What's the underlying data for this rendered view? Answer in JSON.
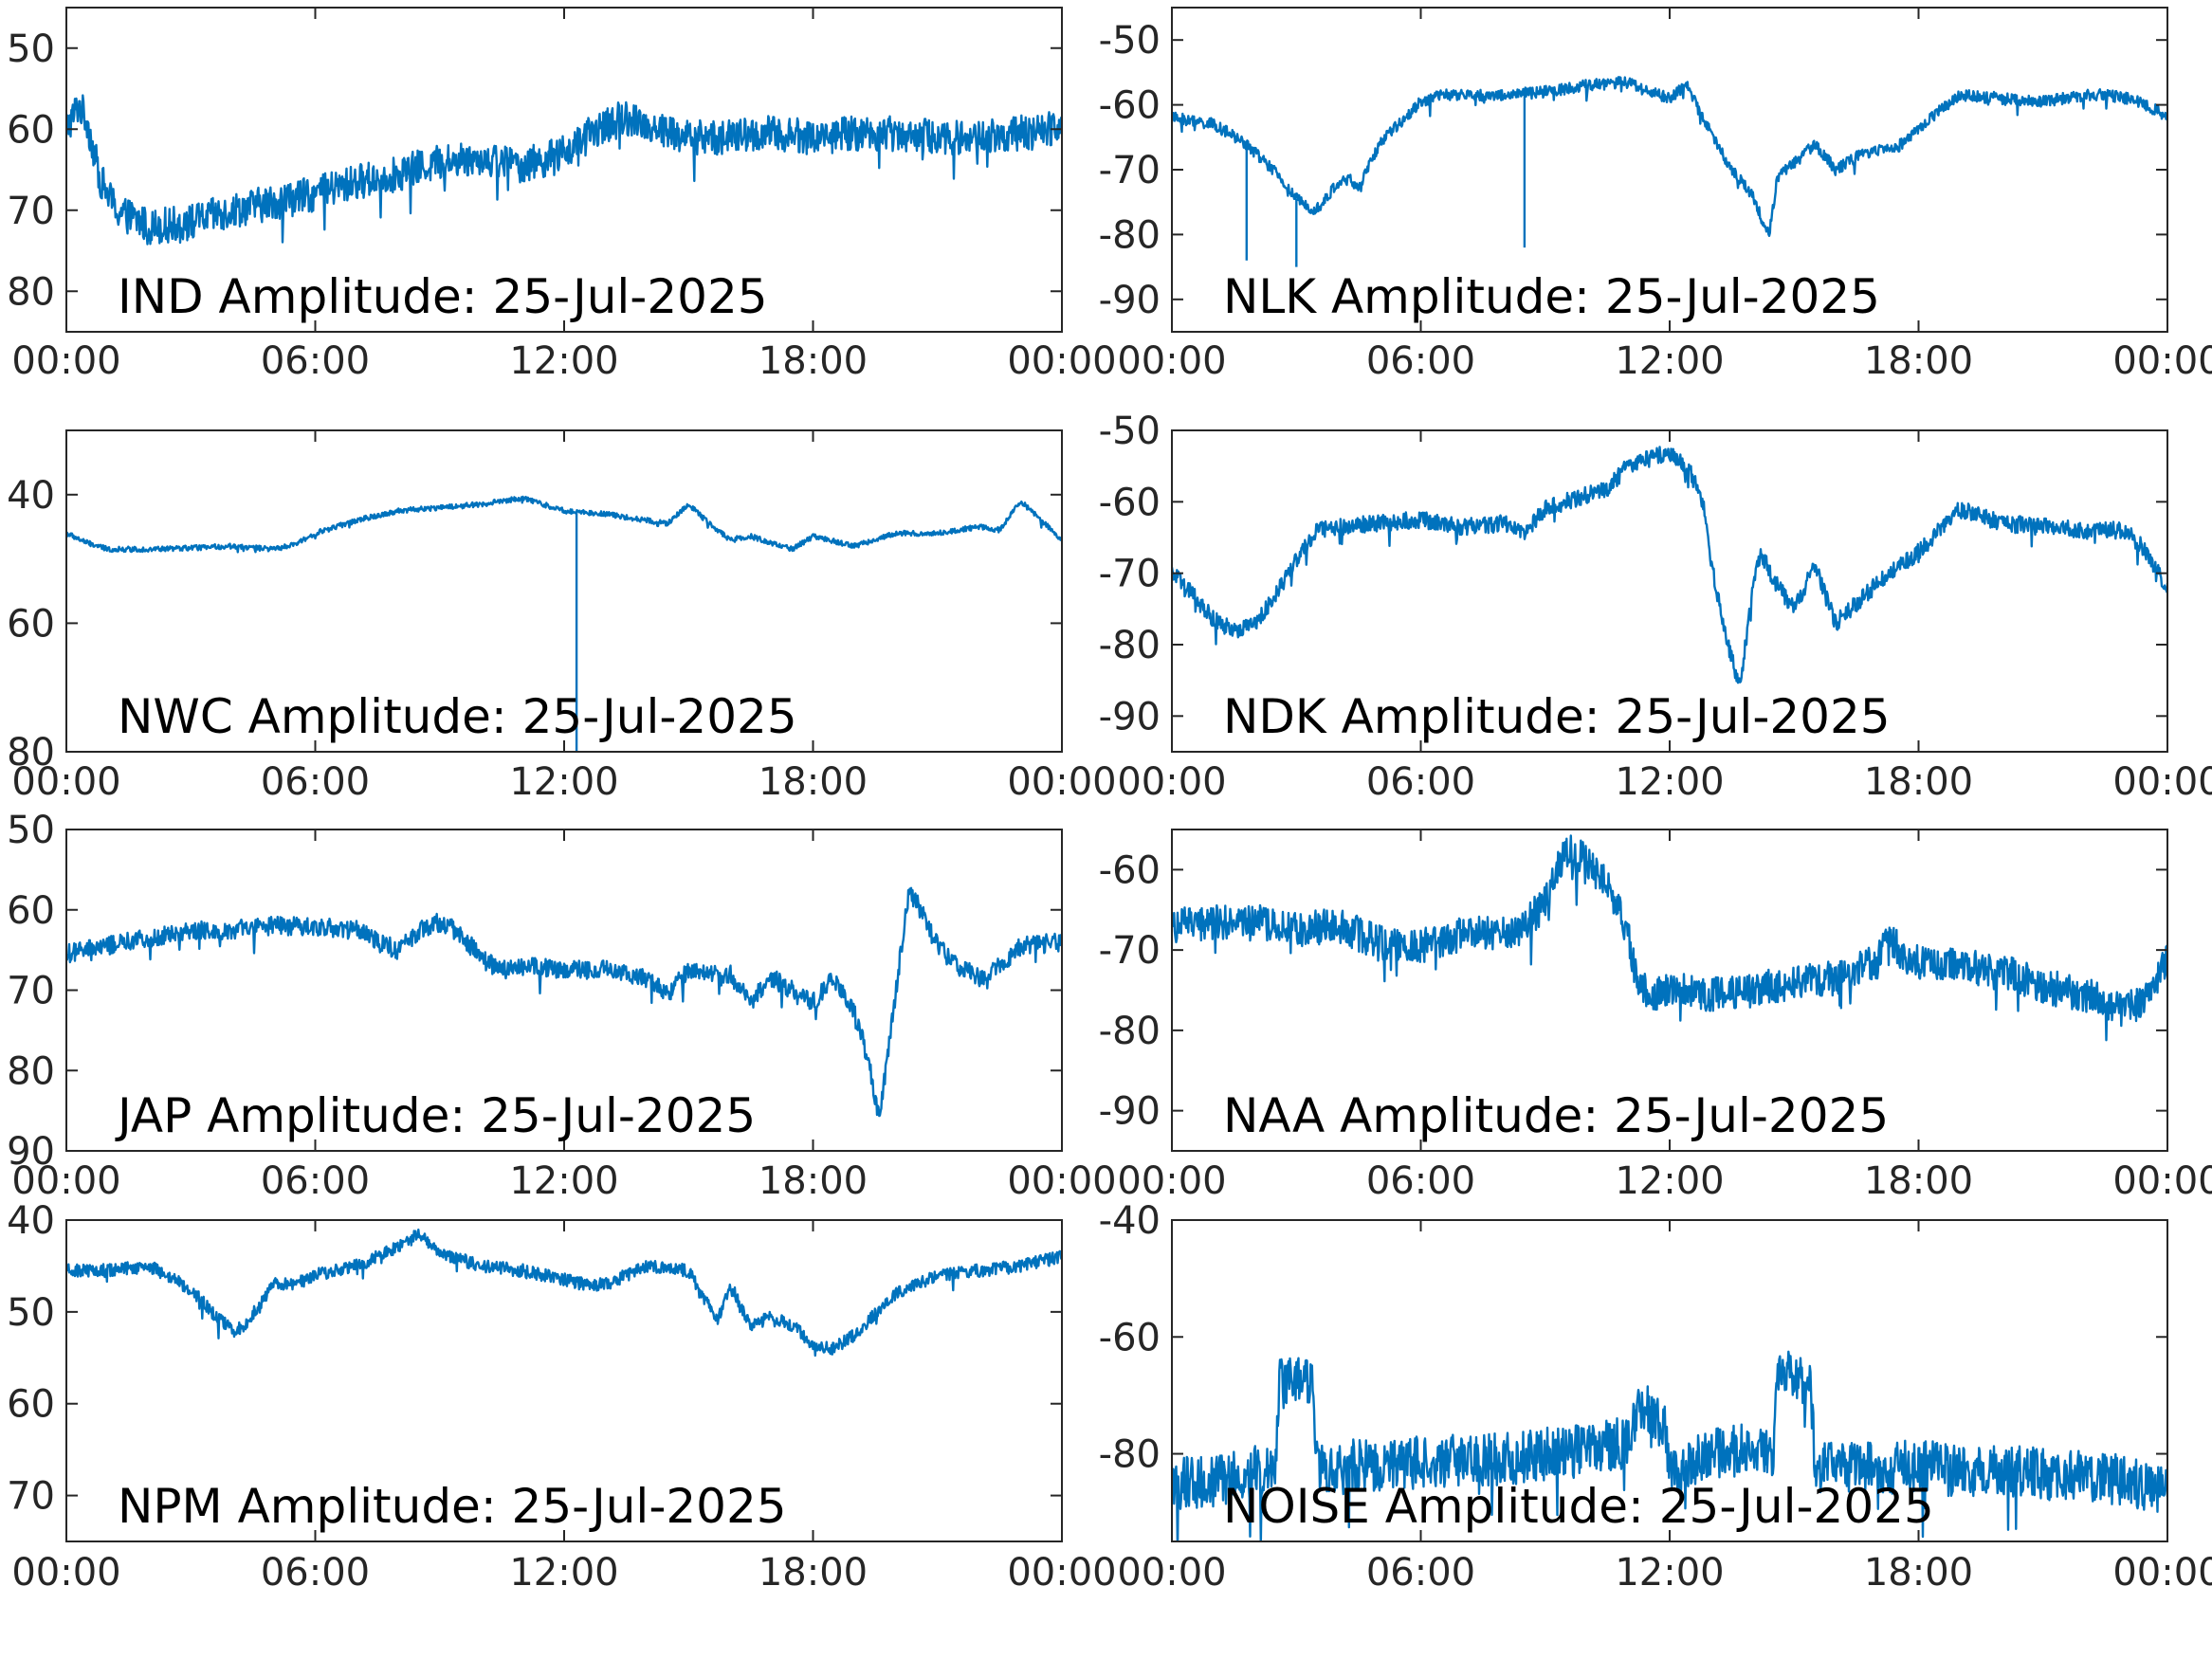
{
  "figure": {
    "line_color": "#0072BD",
    "background": "#ffffff"
  },
  "chart_data": [
    {
      "type": "line",
      "title": "IND Amplitude: 25-Jul-2025",
      "x_ticks": [
        "00:00",
        "06:00",
        "12:00",
        "18:00",
        "00:00"
      ],
      "xlim": [
        0,
        24
      ],
      "ylim": [
        -85,
        -45
      ],
      "y_tick_values": [
        -50,
        -60,
        -70,
        -80
      ],
      "y_tick_labels": [
        "50",
        "60",
        "70",
        "80"
      ],
      "grid": false,
      "noise": 2.2,
      "series": [
        {
          "x": [
            0,
            0.3,
            0.5,
            0.8,
            1.2,
            2,
            3,
            4,
            5,
            6,
            7,
            8,
            9,
            10,
            11,
            12,
            12.8,
            13.5,
            14,
            15,
            16,
            17,
            18,
            19,
            20,
            21,
            22,
            23,
            23.5,
            24
          ],
          "y": [
            -60,
            -57,
            -59,
            -66,
            -70,
            -72,
            -71.5,
            -70,
            -69,
            -68,
            -66.5,
            -65.5,
            -64,
            -63.5,
            -64.5,
            -63,
            -60,
            -58.5,
            -59.5,
            -61,
            -61,
            -60.5,
            -61,
            -60.5,
            -60.5,
            -61,
            -61,
            -60.5,
            -60.5,
            -59
          ]
        }
      ]
    },
    {
      "type": "line",
      "title": "NLK Amplitude: 25-Jul-2025",
      "x_ticks": [
        "00:00",
        "06:00",
        "12:00",
        "18:00",
        "00:00"
      ],
      "xlim": [
        0,
        24
      ],
      "ylim": [
        -95,
        -45
      ],
      "y_tick_values": [
        -50,
        -60,
        -70,
        -80,
        -90
      ],
      "y_tick_labels": [
        "-50",
        "-60",
        "-70",
        "-80",
        "-90"
      ],
      "grid": false,
      "noise": 0.9,
      "series": [
        {
          "x": [
            0,
            0.5,
            1,
            1.8,
            2.5,
            3,
            3.4,
            3.6,
            4,
            4.3,
            4.5,
            5,
            6,
            6.5,
            7,
            8,
            9,
            10,
            11,
            11.5,
            12,
            12.4,
            12.6,
            13,
            13.5,
            14,
            14.4,
            14.6,
            15,
            15.5,
            16,
            16.5,
            17,
            17.5,
            18,
            19,
            20,
            21,
            22,
            22.5,
            23,
            23.5,
            24
          ],
          "y": [
            -62,
            -62.5,
            -63,
            -66,
            -70.5,
            -74.5,
            -76,
            -75.5,
            -72,
            -71.5,
            -73,
            -66,
            -59.5,
            -58.5,
            -58.5,
            -58.5,
            -58,
            -57,
            -56.5,
            -58,
            -59,
            -57,
            -59,
            -64.5,
            -70,
            -74,
            -80,
            -71,
            -69,
            -66,
            -70,
            -68,
            -67,
            -66.5,
            -63.5,
            -58.5,
            -59,
            -59.5,
            -58.5,
            -58.5,
            -59,
            -60,
            -62
          ]
        }
      ],
      "spikes": [
        [
          1.8,
          -84
        ],
        [
          3,
          -85
        ],
        [
          8.5,
          -82
        ]
      ]
    },
    {
      "type": "line",
      "title": "NWC Amplitude: 25-Jul-2025",
      "x_ticks": [
        "00:00",
        "06:00",
        "12:00",
        "18:00",
        "00:00"
      ],
      "xlim": [
        0,
        24
      ],
      "ylim": [
        -80,
        -30
      ],
      "y_tick_values": [
        -40,
        -60,
        -80
      ],
      "y_tick_labels": [
        "40",
        "60",
        "80"
      ],
      "grid": false,
      "noise": 0.4,
      "series": [
        {
          "x": [
            0,
            0.5,
            1,
            2,
            3,
            4,
            5,
            5.5,
            6,
            7,
            8,
            9,
            10,
            11,
            12,
            13,
            14,
            14.5,
            15,
            15.5,
            16,
            16.5,
            17,
            17.5,
            18,
            19,
            20,
            21,
            22,
            22.5,
            23,
            23.5,
            24
          ],
          "y": [
            -46,
            -47.5,
            -48.5,
            -48.5,
            -48.3,
            -48,
            -48.5,
            -47.8,
            -46,
            -44,
            -42.5,
            -42,
            -41.5,
            -40.5,
            -42.5,
            -43,
            -44,
            -44.5,
            -41.5,
            -44.5,
            -47,
            -46.5,
            -47.5,
            -48.5,
            -46.5,
            -48,
            -46,
            -46,
            -45,
            -45.5,
            -41,
            -44,
            -47
          ]
        }
      ],
      "spikes": [
        [
          12.3,
          -80
        ]
      ]
    },
    {
      "type": "line",
      "title": "NDK Amplitude: 25-Jul-2025",
      "x_ticks": [
        "00:00",
        "06:00",
        "12:00",
        "18:00",
        "00:00"
      ],
      "xlim": [
        0,
        24
      ],
      "ylim": [
        -95,
        -50
      ],
      "y_tick_values": [
        -50,
        -60,
        -70,
        -80,
        -90
      ],
      "y_tick_labels": [
        "-50",
        "-60",
        "-70",
        "-80",
        "-90"
      ],
      "grid": false,
      "noise": 1.2,
      "series": [
        {
          "x": [
            0,
            0.5,
            1,
            1.5,
            2,
            2.5,
            3,
            3.5,
            4,
            5,
            6,
            7,
            8,
            8.5,
            9,
            10,
            10.5,
            11,
            12,
            12.5,
            12.8,
            13,
            13.3,
            13.7,
            14,
            14.2,
            14.5,
            15,
            15.5,
            16,
            17,
            18,
            19,
            20,
            21,
            22,
            23,
            23.5,
            24
          ],
          "y": [
            -70,
            -73,
            -76.5,
            -78,
            -77,
            -73,
            -68,
            -64,
            -63.5,
            -63,
            -62.5,
            -63.5,
            -63,
            -64.5,
            -61,
            -59,
            -58,
            -55,
            -53,
            -56,
            -60,
            -68,
            -78,
            -86,
            -72,
            -67,
            -71,
            -75,
            -69,
            -77,
            -71.5,
            -67,
            -61,
            -63,
            -63.5,
            -64,
            -64,
            -67,
            -72
          ]
        }
      ]
    },
    {
      "type": "line",
      "title": "JAP Amplitude: 25-Jul-2025",
      "x_ticks": [
        "00:00",
        "06:00",
        "12:00",
        "18:00",
        "00:00"
      ],
      "xlim": [
        0,
        24
      ],
      "ylim": [
        -90,
        -50
      ],
      "y_tick_values": [
        -50,
        -60,
        -70,
        -80,
        -90
      ],
      "y_tick_labels": [
        "50",
        "60",
        "70",
        "80",
        "90"
      ],
      "grid": false,
      "noise": 1.2,
      "series": [
        {
          "x": [
            0,
            1,
            2,
            3,
            4,
            5,
            6,
            7,
            7.5,
            8,
            8.5,
            9,
            9.5,
            10,
            10.5,
            11,
            12,
            13,
            14,
            14.5,
            15,
            16,
            16.5,
            17,
            17.5,
            18,
            18.5,
            19,
            19.3,
            19.6,
            20,
            20.3,
            20.5,
            21,
            21.5,
            22,
            22.5,
            23,
            24
          ],
          "y": [
            -65.5,
            -64.5,
            -63.5,
            -62.5,
            -62.5,
            -62,
            -62,
            -62.5,
            -64,
            -65,
            -62.5,
            -61.5,
            -63,
            -66,
            -67.5,
            -67,
            -67.5,
            -67.5,
            -68.5,
            -70.5,
            -67.5,
            -68,
            -71.5,
            -68.5,
            -70,
            -71.5,
            -68.5,
            -73,
            -78,
            -86,
            -70,
            -58,
            -59,
            -64.5,
            -67,
            -68.5,
            -67,
            -64.5,
            -64
          ]
        }
      ]
    },
    {
      "type": "line",
      "title": "NAA Amplitude: 25-Jul-2025",
      "x_ticks": [
        "00:00",
        "06:00",
        "12:00",
        "18:00",
        "00:00"
      ],
      "xlim": [
        0,
        24
      ],
      "ylim": [
        -95,
        -55
      ],
      "y_tick_values": [
        -60,
        -70,
        -80,
        -90
      ],
      "y_tick_labels": [
        "-60",
        "-70",
        "-80",
        "-90"
      ],
      "grid": false,
      "noise": 2.2,
      "series": [
        {
          "x": [
            0,
            1,
            2,
            3,
            4,
            5,
            6,
            7,
            8,
            8.5,
            9,
            9.5,
            10,
            10.5,
            11,
            11.2,
            11.5,
            12,
            13,
            14,
            15,
            16,
            17,
            17.3,
            17.6,
            18,
            19,
            20,
            21,
            22,
            23,
            23.5,
            24
          ],
          "y": [
            -67,
            -66.5,
            -66.5,
            -67.5,
            -67,
            -69,
            -69.5,
            -68,
            -68,
            -67,
            -64,
            -57.5,
            -59,
            -62,
            -68,
            -74,
            -75.5,
            -75,
            -75.5,
            -75,
            -74,
            -73.5,
            -71.5,
            -68,
            -70.5,
            -71.5,
            -72,
            -72.5,
            -74.5,
            -75.5,
            -77.5,
            -76,
            -71
          ]
        }
      ]
    },
    {
      "type": "line",
      "title": "NPM Amplitude: 25-Jul-2025",
      "x_ticks": [
        "00:00",
        "06:00",
        "12:00",
        "18:00",
        "00:00"
      ],
      "xlim": [
        0,
        24
      ],
      "ylim": [
        -75,
        -40
      ],
      "y_tick_values": [
        -40,
        -50,
        -60,
        -70
      ],
      "y_tick_labels": [
        "40",
        "50",
        "60",
        "70"
      ],
      "grid": false,
      "noise": 0.7,
      "series": [
        {
          "x": [
            0,
            1,
            2,
            3,
            3.5,
            4,
            4.3,
            5,
            5.5,
            6,
            7,
            8,
            8.5,
            9,
            10,
            11,
            12,
            12.5,
            13,
            14,
            15,
            15.7,
            16,
            16.5,
            17,
            17.5,
            18,
            18.5,
            19,
            20,
            21,
            22,
            23,
            24
          ],
          "y": [
            -45.5,
            -45.5,
            -45,
            -47.5,
            -50,
            -52,
            -51.5,
            -47,
            -47,
            -46,
            -45,
            -43,
            -41.5,
            -43.5,
            -45,
            -45.5,
            -46.5,
            -47,
            -47,
            -45,
            -45.5,
            -51,
            -47,
            -51.5,
            -50.5,
            -51.5,
            -53.5,
            -54,
            -52.5,
            -48,
            -46,
            -45.5,
            -45,
            -44
          ]
        }
      ]
    },
    {
      "type": "line",
      "title": "NOISE Amplitude: 25-Jul-2025",
      "x_ticks": [
        "00:00",
        "06:00",
        "12:00",
        "18:00",
        "00:00"
      ],
      "xlim": [
        0,
        24
      ],
      "ylim": [
        -95,
        -40
      ],
      "y_tick_values": [
        -40,
        -60,
        -80
      ],
      "y_tick_labels": [
        "-40",
        "-60",
        "-80"
      ],
      "grid": false,
      "noise": 4.5,
      "series": [
        {
          "x": [
            0,
            1,
            2,
            2.5,
            2.6,
            3,
            3.4,
            3.5,
            4,
            5,
            6,
            7,
            8,
            9,
            10,
            11,
            11.3,
            11.5,
            11.9,
            12,
            13,
            14,
            14.5,
            14.6,
            15,
            15.4,
            15.5,
            16,
            17,
            18,
            19,
            20,
            21,
            22,
            23,
            24
          ],
          "y": [
            -85,
            -85,
            -83,
            -82,
            -67,
            -67,
            -67,
            -82,
            -82,
            -82,
            -81.5,
            -81,
            -81,
            -80,
            -79.5,
            -78,
            -71,
            -73,
            -76,
            -84,
            -80,
            -79,
            -79.5,
            -67,
            -67,
            -67,
            -82,
            -82.5,
            -82.5,
            -82,
            -83,
            -83,
            -83.5,
            -84,
            -84.5,
            -86
          ]
        }
      ]
    }
  ]
}
